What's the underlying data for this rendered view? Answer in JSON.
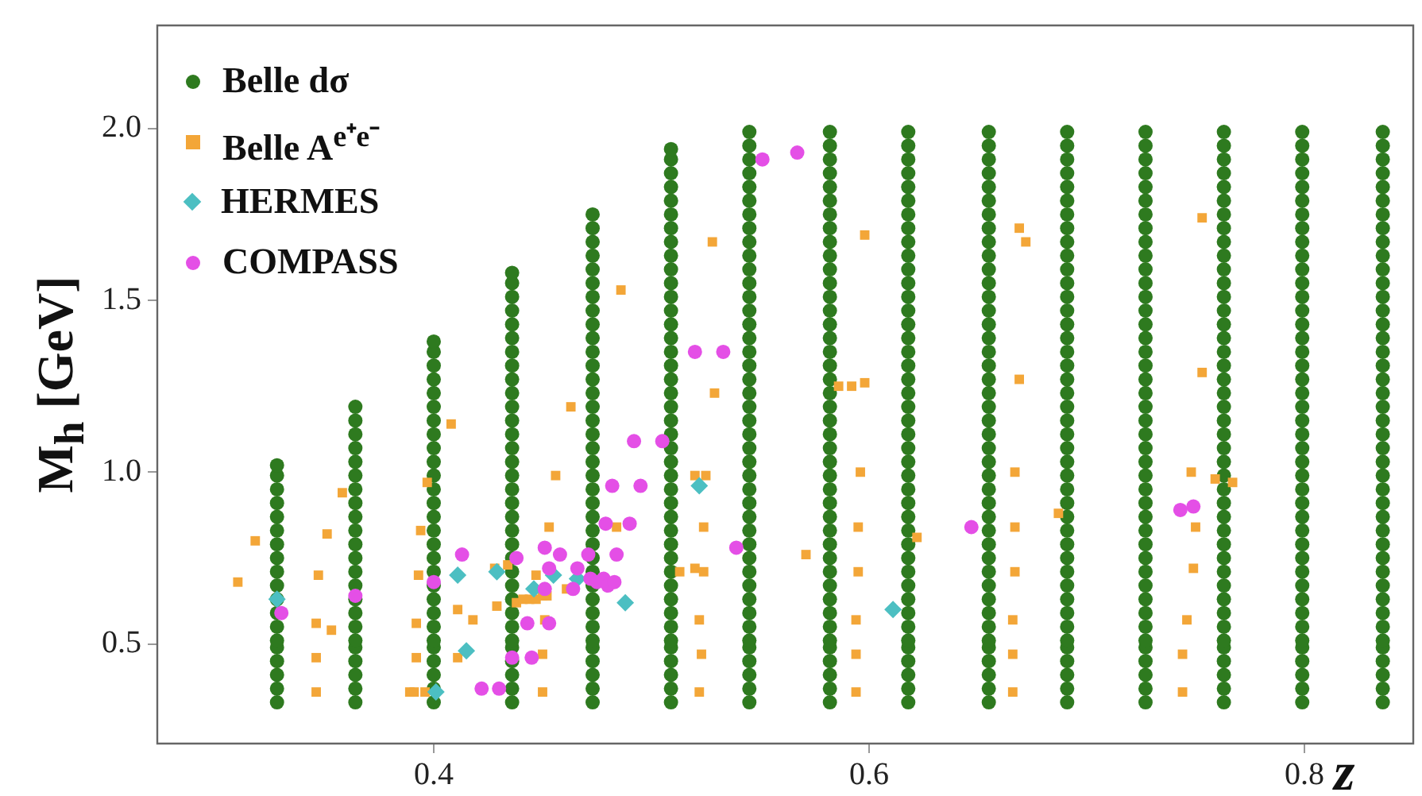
{
  "chart_data": {
    "type": "scatter",
    "xlabel": "z",
    "ylabel": "M$_{h}$ [GeV]",
    "xlim": [
      0.273,
      0.85
    ],
    "ylim": [
      0.21,
      2.3
    ],
    "xticks": [
      0.4,
      0.6,
      0.8
    ],
    "yticks": [
      0.5,
      {
        "value": 1,
        "label": "1.0"
      },
      1.5,
      {
        "value": 2,
        "label": "2.0"
      }
    ],
    "grid": false,
    "legend": "top left",
    "series": [
      {
        "name": "Belle dσ",
        "color": "#2e7a1f",
        "marker": "circle",
        "x": [
          0.328,
          0.328,
          0.328,
          0.328,
          0.328,
          0.328,
          0.328,
          0.328,
          0.328,
          0.328,
          0.328,
          0.328,
          0.328,
          0.328,
          0.328,
          0.328,
          0.328,
          0.328,
          0.328,
          0.364,
          0.364,
          0.364,
          0.364,
          0.364,
          0.364,
          0.364,
          0.364,
          0.364,
          0.364,
          0.364,
          0.364,
          0.364,
          0.364,
          0.364,
          0.364,
          0.364,
          0.364,
          0.364,
          0.364,
          0.364,
          0.364,
          0.364,
          0.4,
          0.4,
          0.4,
          0.4,
          0.4,
          0.4,
          0.4,
          0.4,
          0.4,
          0.4,
          0.4,
          0.4,
          0.4,
          0.4,
          0.4,
          0.4,
          0.4,
          0.4,
          0.4,
          0.4,
          0.4,
          0.4,
          0.4,
          0.4,
          0.4,
          0.4,
          0.4,
          0.4,
          0.436,
          0.436,
          0.436,
          0.436,
          0.436,
          0.436,
          0.436,
          0.436,
          0.436,
          0.436,
          0.436,
          0.436,
          0.436,
          0.436,
          0.436,
          0.436,
          0.436,
          0.436,
          0.436,
          0.436,
          0.436,
          0.436,
          0.436,
          0.436,
          0.436,
          0.436,
          0.436,
          0.436,
          0.436,
          0.436,
          0.436,
          0.436,
          0.436,
          0.473,
          0.473,
          0.473,
          0.473,
          0.473,
          0.473,
          0.473,
          0.473,
          0.473,
          0.473,
          0.473,
          0.473,
          0.473,
          0.473,
          0.473,
          0.473,
          0.473,
          0.473,
          0.473,
          0.473,
          0.473,
          0.473,
          0.473,
          0.473,
          0.473,
          0.473,
          0.473,
          0.473,
          0.473,
          0.473,
          0.473,
          0.473,
          0.473,
          0.473,
          0.473,
          0.473,
          0.473,
          0.509,
          0.509,
          0.509,
          0.509,
          0.509,
          0.509,
          0.509,
          0.509,
          0.509,
          0.509,
          0.509,
          0.509,
          0.509,
          0.509,
          0.509,
          0.509,
          0.509,
          0.509,
          0.509,
          0.509,
          0.509,
          0.509,
          0.509,
          0.509,
          0.509,
          0.509,
          0.509,
          0.509,
          0.509,
          0.509,
          0.509,
          0.509,
          0.509,
          0.509,
          0.509,
          0.509,
          0.509,
          0.509,
          0.509,
          0.509,
          0.509,
          0.509,
          0.545,
          0.545,
          0.545,
          0.545,
          0.545,
          0.545,
          0.545,
          0.545,
          0.545,
          0.545,
          0.545,
          0.545,
          0.545,
          0.545,
          0.545,
          0.545,
          0.545,
          0.545,
          0.545,
          0.545,
          0.545,
          0.545,
          0.545,
          0.545,
          0.545,
          0.545,
          0.545,
          0.545,
          0.545,
          0.545,
          0.545,
          0.545,
          0.545,
          0.545,
          0.545,
          0.545,
          0.545,
          0.545,
          0.545,
          0.545,
          0.545,
          0.545,
          0.545,
          0.582,
          0.582,
          0.582,
          0.582,
          0.582,
          0.582,
          0.582,
          0.582,
          0.582,
          0.582,
          0.582,
          0.582,
          0.582,
          0.582,
          0.582,
          0.582,
          0.582,
          0.582,
          0.582,
          0.582,
          0.582,
          0.582,
          0.582,
          0.582,
          0.582,
          0.582,
          0.582,
          0.582,
          0.582,
          0.582,
          0.582,
          0.582,
          0.582,
          0.582,
          0.582,
          0.582,
          0.582,
          0.582,
          0.582,
          0.582,
          0.582,
          0.582,
          0.582,
          0.618,
          0.618,
          0.618,
          0.618,
          0.618,
          0.618,
          0.618,
          0.618,
          0.618,
          0.618,
          0.618,
          0.618,
          0.618,
          0.618,
          0.618,
          0.618,
          0.618,
          0.618,
          0.618,
          0.618,
          0.618,
          0.618,
          0.618,
          0.618,
          0.618,
          0.618,
          0.618,
          0.618,
          0.618,
          0.618,
          0.618,
          0.618,
          0.618,
          0.618,
          0.618,
          0.618,
          0.618,
          0.618,
          0.618,
          0.618,
          0.618,
          0.618,
          0.618,
          0.655,
          0.655,
          0.655,
          0.655,
          0.655,
          0.655,
          0.655,
          0.655,
          0.655,
          0.655,
          0.655,
          0.655,
          0.655,
          0.655,
          0.655,
          0.655,
          0.655,
          0.655,
          0.655,
          0.655,
          0.655,
          0.655,
          0.655,
          0.655,
          0.655,
          0.655,
          0.655,
          0.655,
          0.655,
          0.655,
          0.655,
          0.655,
          0.655,
          0.655,
          0.655,
          0.655,
          0.655,
          0.655,
          0.655,
          0.655,
          0.655,
          0.655,
          0.655,
          0.691,
          0.691,
          0.691,
          0.691,
          0.691,
          0.691,
          0.691,
          0.691,
          0.691,
          0.691,
          0.691,
          0.691,
          0.691,
          0.691,
          0.691,
          0.691,
          0.691,
          0.691,
          0.691,
          0.691,
          0.691,
          0.691,
          0.691,
          0.691,
          0.691,
          0.691,
          0.691,
          0.691,
          0.691,
          0.691,
          0.691,
          0.691,
          0.691,
          0.691,
          0.691,
          0.691,
          0.691,
          0.691,
          0.691,
          0.691,
          0.691,
          0.691,
          0.691,
          0.727,
          0.727,
          0.727,
          0.727,
          0.727,
          0.727,
          0.727,
          0.727,
          0.727,
          0.727,
          0.727,
          0.727,
          0.727,
          0.727,
          0.727,
          0.727,
          0.727,
          0.727,
          0.727,
          0.727,
          0.727,
          0.727,
          0.727,
          0.727,
          0.727,
          0.727,
          0.727,
          0.727,
          0.727,
          0.727,
          0.727,
          0.727,
          0.727,
          0.727,
          0.727,
          0.727,
          0.727,
          0.727,
          0.727,
          0.727,
          0.727,
          0.727,
          0.727,
          0.763,
          0.763,
          0.763,
          0.763,
          0.763,
          0.763,
          0.763,
          0.763,
          0.763,
          0.763,
          0.763,
          0.763,
          0.763,
          0.763,
          0.763,
          0.763,
          0.763,
          0.763,
          0.763,
          0.763,
          0.763,
          0.763,
          0.763,
          0.763,
          0.763,
          0.763,
          0.763,
          0.763,
          0.763,
          0.763,
          0.763,
          0.763,
          0.763,
          0.763,
          0.763,
          0.763,
          0.763,
          0.763,
          0.763,
          0.763,
          0.763,
          0.763,
          0.763,
          0.799,
          0.799,
          0.799,
          0.799,
          0.799,
          0.799,
          0.799,
          0.799,
          0.799,
          0.799,
          0.799,
          0.799,
          0.799,
          0.799,
          0.799,
          0.799,
          0.799,
          0.799,
          0.799,
          0.799,
          0.799,
          0.799,
          0.799,
          0.799,
          0.799,
          0.799,
          0.799,
          0.799,
          0.799,
          0.799,
          0.799,
          0.799,
          0.799,
          0.799,
          0.799,
          0.799,
          0.799,
          0.799,
          0.799,
          0.799,
          0.799,
          0.799,
          0.799,
          0.836,
          0.836,
          0.836,
          0.836,
          0.836,
          0.836,
          0.836,
          0.836,
          0.836,
          0.836,
          0.836,
          0.836,
          0.836,
          0.836,
          0.836,
          0.836,
          0.836,
          0.836,
          0.836,
          0.836,
          0.836,
          0.836,
          0.836,
          0.836,
          0.836,
          0.836,
          0.836,
          0.836,
          0.836,
          0.836,
          0.836,
          0.836,
          0.836,
          0.836,
          0.836,
          0.836,
          0.836,
          0.836,
          0.836,
          0.836,
          0.836,
          0.836,
          0.836
        ],
        "values": [
          0.33,
          0.37,
          0.41,
          0.45,
          0.49,
          0.51,
          0.55,
          0.59,
          0.63,
          0.67,
          0.71,
          0.75,
          0.79,
          0.83,
          0.87,
          0.91,
          0.95,
          0.99,
          1.02,
          0.33,
          0.37,
          0.41,
          0.45,
          0.49,
          0.51,
          0.55,
          0.59,
          0.63,
          0.67,
          0.71,
          0.75,
          0.79,
          0.83,
          0.87,
          0.91,
          0.95,
          0.99,
          1.03,
          1.07,
          1.11,
          1.15,
          1.19,
          0.33,
          0.37,
          0.41,
          0.45,
          0.49,
          0.51,
          0.55,
          0.59,
          0.63,
          0.67,
          0.71,
          0.75,
          0.79,
          0.83,
          0.87,
          0.91,
          0.95,
          0.99,
          1.03,
          1.07,
          1.11,
          1.15,
          1.19,
          1.23,
          1.27,
          1.31,
          1.35,
          1.38,
          0.33,
          0.37,
          0.41,
          0.45,
          0.49,
          0.51,
          0.55,
          0.59,
          0.63,
          0.67,
          0.71,
          0.75,
          0.79,
          0.83,
          0.87,
          0.91,
          0.95,
          0.99,
          1.03,
          1.07,
          1.11,
          1.15,
          1.19,
          1.23,
          1.27,
          1.31,
          1.35,
          1.39,
          1.43,
          1.47,
          1.51,
          1.55,
          1.58,
          0.33,
          0.37,
          0.41,
          0.45,
          0.49,
          0.51,
          0.55,
          0.59,
          0.63,
          0.67,
          0.71,
          0.75,
          0.79,
          0.83,
          0.87,
          0.91,
          0.95,
          0.99,
          1.03,
          1.07,
          1.11,
          1.15,
          1.19,
          1.23,
          1.27,
          1.31,
          1.35,
          1.39,
          1.43,
          1.47,
          1.51,
          1.55,
          1.59,
          1.63,
          1.67,
          1.71,
          1.75,
          0.33,
          0.37,
          0.41,
          0.45,
          0.49,
          0.51,
          0.55,
          0.59,
          0.63,
          0.67,
          0.71,
          0.75,
          0.79,
          0.83,
          0.87,
          0.91,
          0.95,
          0.99,
          1.03,
          1.07,
          1.11,
          1.15,
          1.19,
          1.23,
          1.27,
          1.31,
          1.35,
          1.39,
          1.43,
          1.47,
          1.51,
          1.55,
          1.59,
          1.63,
          1.67,
          1.71,
          1.75,
          1.79,
          1.83,
          1.87,
          1.91,
          1.94,
          0.33,
          0.37,
          0.41,
          0.45,
          0.49,
          0.51,
          0.55,
          0.59,
          0.63,
          0.67,
          0.71,
          0.75,
          0.79,
          0.83,
          0.87,
          0.91,
          0.95,
          0.99,
          1.03,
          1.07,
          1.11,
          1.15,
          1.19,
          1.23,
          1.27,
          1.31,
          1.35,
          1.39,
          1.43,
          1.47,
          1.51,
          1.55,
          1.59,
          1.63,
          1.67,
          1.71,
          1.75,
          1.79,
          1.83,
          1.87,
          1.91,
          1.95,
          1.99,
          0.33,
          0.37,
          0.41,
          0.45,
          0.49,
          0.51,
          0.55,
          0.59,
          0.63,
          0.67,
          0.71,
          0.75,
          0.79,
          0.83,
          0.87,
          0.91,
          0.95,
          0.99,
          1.03,
          1.07,
          1.11,
          1.15,
          1.19,
          1.23,
          1.27,
          1.31,
          1.35,
          1.39,
          1.43,
          1.47,
          1.51,
          1.55,
          1.59,
          1.63,
          1.67,
          1.71,
          1.75,
          1.79,
          1.83,
          1.87,
          1.91,
          1.95,
          1.99,
          0.33,
          0.37,
          0.41,
          0.45,
          0.49,
          0.51,
          0.55,
          0.59,
          0.63,
          0.67,
          0.71,
          0.75,
          0.79,
          0.83,
          0.87,
          0.91,
          0.95,
          0.99,
          1.03,
          1.07,
          1.11,
          1.15,
          1.19,
          1.23,
          1.27,
          1.31,
          1.35,
          1.39,
          1.43,
          1.47,
          1.51,
          1.55,
          1.59,
          1.63,
          1.67,
          1.71,
          1.75,
          1.79,
          1.83,
          1.87,
          1.91,
          1.95,
          1.99,
          0.33,
          0.37,
          0.41,
          0.45,
          0.49,
          0.51,
          0.55,
          0.59,
          0.63,
          0.67,
          0.71,
          0.75,
          0.79,
          0.83,
          0.87,
          0.91,
          0.95,
          0.99,
          1.03,
          1.07,
          1.11,
          1.15,
          1.19,
          1.23,
          1.27,
          1.31,
          1.35,
          1.39,
          1.43,
          1.47,
          1.51,
          1.55,
          1.59,
          1.63,
          1.67,
          1.71,
          1.75,
          1.79,
          1.83,
          1.87,
          1.91,
          1.95,
          1.99,
          0.33,
          0.37,
          0.41,
          0.45,
          0.49,
          0.51,
          0.55,
          0.59,
          0.63,
          0.67,
          0.71,
          0.75,
          0.79,
          0.83,
          0.87,
          0.91,
          0.95,
          0.99,
          1.03,
          1.07,
          1.11,
          1.15,
          1.19,
          1.23,
          1.27,
          1.31,
          1.35,
          1.39,
          1.43,
          1.47,
          1.51,
          1.55,
          1.59,
          1.63,
          1.67,
          1.71,
          1.75,
          1.79,
          1.83,
          1.87,
          1.91,
          1.95,
          1.99,
          0.33,
          0.37,
          0.41,
          0.45,
          0.49,
          0.51,
          0.55,
          0.59,
          0.63,
          0.67,
          0.71,
          0.75,
          0.79,
          0.83,
          0.87,
          0.91,
          0.95,
          0.99,
          1.03,
          1.07,
          1.11,
          1.15,
          1.19,
          1.23,
          1.27,
          1.31,
          1.35,
          1.39,
          1.43,
          1.47,
          1.51,
          1.55,
          1.59,
          1.63,
          1.67,
          1.71,
          1.75,
          1.79,
          1.83,
          1.87,
          1.91,
          1.95,
          1.99,
          0.33,
          0.37,
          0.41,
          0.45,
          0.49,
          0.51,
          0.55,
          0.59,
          0.63,
          0.67,
          0.71,
          0.75,
          0.79,
          0.83,
          0.87,
          0.91,
          0.95,
          0.99,
          1.03,
          1.07,
          1.11,
          1.15,
          1.19,
          1.23,
          1.27,
          1.31,
          1.35,
          1.39,
          1.43,
          1.47,
          1.51,
          1.55,
          1.59,
          1.63,
          1.67,
          1.71,
          1.75,
          1.79,
          1.83,
          1.87,
          1.91,
          1.95,
          1.99,
          0.33,
          0.37,
          0.41,
          0.45,
          0.49,
          0.51,
          0.55,
          0.59,
          0.63,
          0.67,
          0.71,
          0.75,
          0.79,
          0.83,
          0.87,
          0.91,
          0.95,
          0.99,
          1.03,
          1.07,
          1.11,
          1.15,
          1.19,
          1.23,
          1.27,
          1.31,
          1.35,
          1.39,
          1.43,
          1.47,
          1.51,
          1.55,
          1.59,
          1.63,
          1.67,
          1.71,
          1.75,
          1.79,
          1.83,
          1.87,
          1.91,
          1.95,
          1.99,
          0.33,
          0.37,
          0.41,
          0.45,
          0.49,
          0.51,
          0.55,
          0.59,
          0.63,
          0.67,
          0.71,
          0.75,
          0.79,
          0.83,
          0.87,
          0.91,
          0.95,
          0.99,
          1.03,
          1.07,
          1.11,
          1.15,
          1.19,
          1.23,
          1.27,
          1.31,
          1.35,
          1.39,
          1.43,
          1.47,
          1.51,
          1.55,
          1.59,
          1.63,
          1.67,
          1.71,
          1.75,
          1.79,
          1.83,
          1.87,
          1.91,
          1.95,
          1.99
        ]
      },
      {
        "name": "Belle A$^{e⁺e⁻}$",
        "color": "#f3a638",
        "marker": "square",
        "x": [
          0.31,
          0.318,
          0.346,
          0.346,
          0.346,
          0.353,
          0.347,
          0.351,
          0.358,
          0.389,
          0.391,
          0.396,
          0.392,
          0.392,
          0.393,
          0.394,
          0.397,
          0.408,
          0.411,
          0.411,
          0.418,
          0.428,
          0.429,
          0.434,
          0.438,
          0.441,
          0.444,
          0.447,
          0.45,
          0.452,
          0.447,
          0.45,
          0.45,
          0.451,
          0.453,
          0.456,
          0.461,
          0.463,
          0.484,
          0.52,
          0.525,
          0.524,
          0.513,
          0.52,
          0.524,
          0.522,
          0.523,
          0.522,
          0.529,
          0.528,
          0.486,
          0.598,
          0.586,
          0.592,
          0.598,
          0.669,
          0.672,
          0.669,
          0.753,
          0.753,
          0.596,
          0.595,
          0.595,
          0.594,
          0.594,
          0.594,
          0.571,
          0.622,
          0.667,
          0.667,
          0.667,
          0.666,
          0.666,
          0.666,
          0.687,
          0.748,
          0.75,
          0.749,
          0.746,
          0.744,
          0.744,
          0.759,
          0.767
        ],
        "values": [
          0.68,
          0.8,
          0.36,
          0.46,
          0.56,
          0.54,
          0.7,
          0.82,
          0.94,
          0.36,
          0.36,
          0.36,
          0.46,
          0.56,
          0.7,
          0.83,
          0.97,
          1.14,
          0.6,
          0.46,
          0.57,
          0.72,
          0.61,
          0.73,
          0.62,
          0.63,
          0.63,
          0.63,
          0.64,
          0.64,
          0.7,
          0.47,
          0.36,
          0.57,
          0.84,
          0.99,
          0.66,
          1.19,
          0.84,
          0.99,
          0.99,
          0.84,
          0.71,
          0.72,
          0.71,
          0.57,
          0.47,
          0.36,
          1.23,
          1.67,
          1.53,
          1.69,
          1.25,
          1.25,
          1.26,
          1.71,
          1.67,
          1.27,
          1.74,
          1.29,
          1.0,
          0.84,
          0.71,
          0.57,
          0.47,
          0.36,
          0.76,
          0.81,
          1.0,
          0.84,
          0.71,
          0.57,
          0.47,
          0.36,
          0.88,
          1.0,
          0.84,
          0.72,
          0.57,
          0.47,
          0.36,
          0.98,
          0.97
        ]
      },
      {
        "name": "HERMES",
        "color": "#4cbfc2",
        "marker": "diamond",
        "x": [
          0.328,
          0.411,
          0.415,
          0.401,
          0.429,
          0.446,
          0.455,
          0.466,
          0.488,
          0.522,
          0.611
        ],
        "values": [
          0.63,
          0.7,
          0.48,
          0.36,
          0.71,
          0.66,
          0.7,
          0.69,
          0.62,
          0.96,
          0.6
        ]
      },
      {
        "name": "COMPASS",
        "color": "#e44fe6",
        "marker": "circle",
        "x": [
          0.33,
          0.364,
          0.4,
          0.413,
          0.422,
          0.43,
          0.438,
          0.436,
          0.443,
          0.445,
          0.451,
          0.453,
          0.451,
          0.453,
          0.458,
          0.464,
          0.466,
          0.471,
          0.472,
          0.475,
          0.478,
          0.48,
          0.483,
          0.479,
          0.482,
          0.484,
          0.49,
          0.492,
          0.495,
          0.505,
          0.539,
          0.52,
          0.533,
          0.551,
          0.567,
          0.647,
          0.743,
          0.749
        ],
        "values": [
          0.59,
          0.64,
          0.68,
          0.76,
          0.37,
          0.37,
          0.75,
          0.46,
          0.56,
          0.46,
          0.78,
          0.72,
          0.66,
          0.56,
          0.76,
          0.66,
          0.72,
          0.76,
          0.69,
          0.68,
          0.69,
          0.67,
          0.68,
          0.85,
          0.96,
          0.76,
          0.85,
          1.09,
          0.96,
          1.09,
          0.78,
          1.35,
          1.35,
          1.91,
          1.93,
          0.84,
          0.89,
          0.9
        ]
      }
    ]
  }
}
